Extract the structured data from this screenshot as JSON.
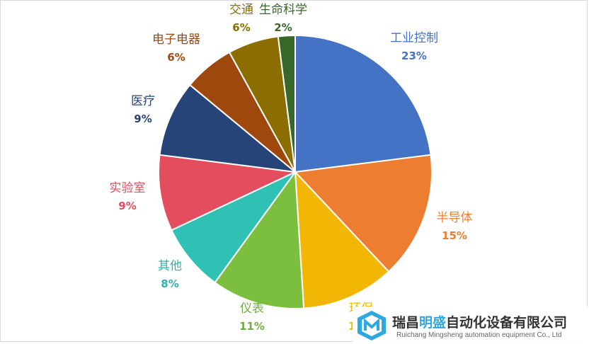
{
  "chart_data": {
    "type": "pie",
    "title": "",
    "slices": [
      {
        "label": "工业控制",
        "value": 23,
        "value_label": "23%",
        "color": "#4472c4",
        "label_color": "#4472c4"
      },
      {
        "label": "半导体",
        "value": 15,
        "value_label": "15%",
        "color": "#ed7d31",
        "label_color": "#ed7d31"
      },
      {
        "label": "环保",
        "value": 11,
        "value_label": "11%",
        "color": "#f2b705",
        "label_color": "#f2b705"
      },
      {
        "label": "仪表",
        "value": 11,
        "value_label": "11%",
        "color": "#7cbf3e",
        "label_color": "#70ad47"
      },
      {
        "label": "其他",
        "value": 8,
        "value_label": "8%",
        "color": "#2fc1b3",
        "label_color": "#2bb3a6"
      },
      {
        "label": "实验室",
        "value": 9,
        "value_label": "9%",
        "color": "#e34d5e",
        "label_color": "#e34d5e"
      },
      {
        "label": "医疗",
        "value": 9,
        "value_label": "9%",
        "color": "#264478",
        "label_color": "#264478"
      },
      {
        "label": "电子电器",
        "value": 6,
        "value_label": "6%",
        "color": "#9e480e",
        "label_color": "#9e480e"
      },
      {
        "label": "交通",
        "value": 6,
        "value_label": "6%",
        "color": "#8c6d00",
        "label_color": "#8c6d00"
      },
      {
        "label": "生命科学",
        "value": 2,
        "value_label": "2%",
        "color": "#38672a",
        "label_color": "#38672a"
      }
    ],
    "legend": "none"
  },
  "watermark": {
    "company_cn_a": "瑞昌",
    "company_cn_b": "明盛",
    "company_cn_c": "自动化设备有限公司",
    "company_en": "Ruichang Mingsheng automation equipment Co., Ltd",
    "logo_icon": "cube-logo-icon",
    "logo_color": "#2ea8e0"
  }
}
